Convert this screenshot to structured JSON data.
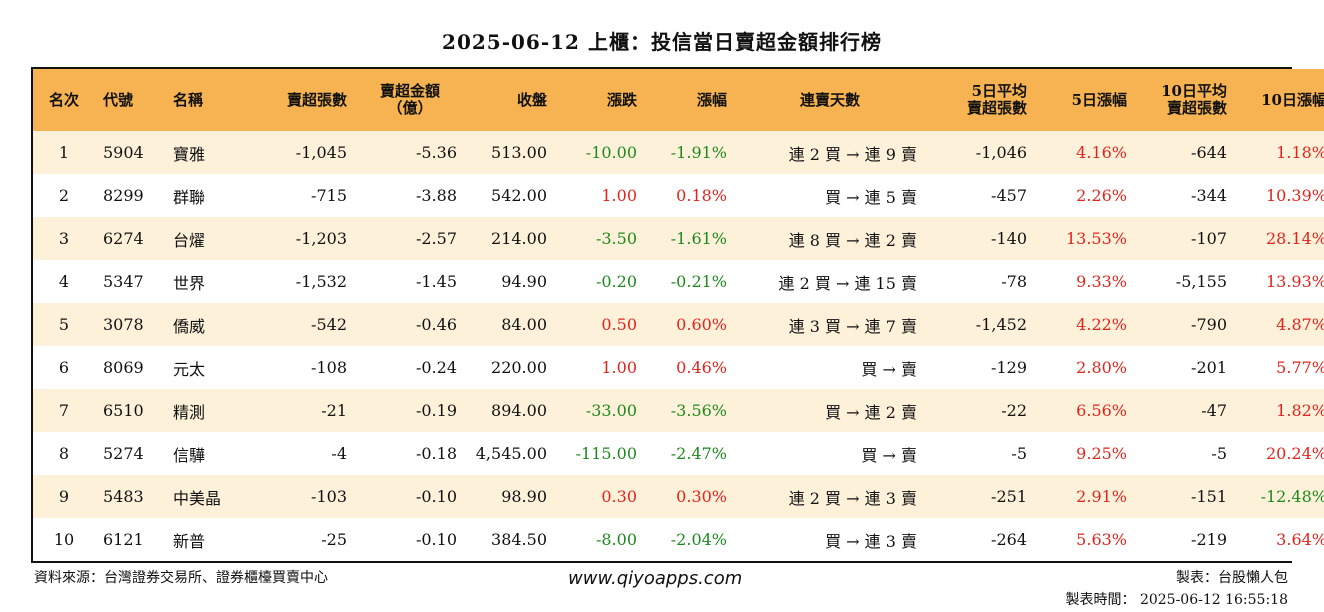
{
  "title": "2025-06-12 上櫃：投信當日賣超金額排行榜",
  "colors": {
    "header_bg": "#f7b352",
    "odd_row_bg": "#fdf1da",
    "positive": "#e3241d",
    "negative": "#1e8a1e"
  },
  "columns": [
    "名次",
    "代號",
    "名稱",
    "賣超張數",
    "賣超金額\n（億）",
    "收盤",
    "漲跌",
    "漲幅",
    "連賣天數",
    "5日平均\n賣超張數",
    "5日漲幅",
    "10日平均\n賣超張數",
    "10日漲幅"
  ],
  "rows": [
    [
      "1",
      "5904",
      "寶雅",
      "-1,045",
      "-5.36",
      "513.00",
      "-10.00",
      "-1.91%",
      "連 2 買 → 連 9 賣",
      "-1,046",
      "4.16%",
      "-644",
      "1.18%"
    ],
    [
      "2",
      "8299",
      "群聯",
      "-715",
      "-3.88",
      "542.00",
      "1.00",
      "0.18%",
      "買 → 連 5 賣",
      "-457",
      "2.26%",
      "-344",
      "10.39%"
    ],
    [
      "3",
      "6274",
      "台燿",
      "-1,203",
      "-2.57",
      "214.00",
      "-3.50",
      "-1.61%",
      "連 8 買 → 連 2 賣",
      "-140",
      "13.53%",
      "-107",
      "28.14%"
    ],
    [
      "4",
      "5347",
      "世界",
      "-1,532",
      "-1.45",
      "94.90",
      "-0.20",
      "-0.21%",
      "連 2 買 → 連 15 賣",
      "-78",
      "9.33%",
      "-5,155",
      "13.93%"
    ],
    [
      "5",
      "3078",
      "僑威",
      "-542",
      "-0.46",
      "84.00",
      "0.50",
      "0.60%",
      "連 3 買 → 連 7 賣",
      "-1,452",
      "4.22%",
      "-790",
      "4.87%"
    ],
    [
      "6",
      "8069",
      "元太",
      "-108",
      "-0.24",
      "220.00",
      "1.00",
      "0.46%",
      "買 → 賣",
      "-129",
      "2.80%",
      "-201",
      "5.77%"
    ],
    [
      "7",
      "6510",
      "精測",
      "-21",
      "-0.19",
      "894.00",
      "-33.00",
      "-3.56%",
      "買 → 連 2 賣",
      "-22",
      "6.56%",
      "-47",
      "1.82%"
    ],
    [
      "8",
      "5274",
      "信驊",
      "-4",
      "-0.18",
      "4,545.00",
      "-115.00",
      "-2.47%",
      "買 → 賣",
      "-5",
      "9.25%",
      "-5",
      "20.24%"
    ],
    [
      "9",
      "5483",
      "中美晶",
      "-103",
      "-0.10",
      "98.90",
      "0.30",
      "0.30%",
      "連 2 買 → 連 3 賣",
      "-251",
      "2.91%",
      "-151",
      "-12.48%"
    ],
    [
      "10",
      "6121",
      "新普",
      "-25",
      "-0.10",
      "384.50",
      "-8.00",
      "-2.04%",
      "買 → 連 3 賣",
      "-264",
      "5.63%",
      "-219",
      "3.64%"
    ]
  ],
  "footer": {
    "source": "資料來源：台灣證券交易所、證券櫃檯買賣中心",
    "url": "www.qiyoapps.com",
    "maker": "製表：台股懶人包",
    "time": "製表時間： 2025-06-12 16:55:18"
  }
}
